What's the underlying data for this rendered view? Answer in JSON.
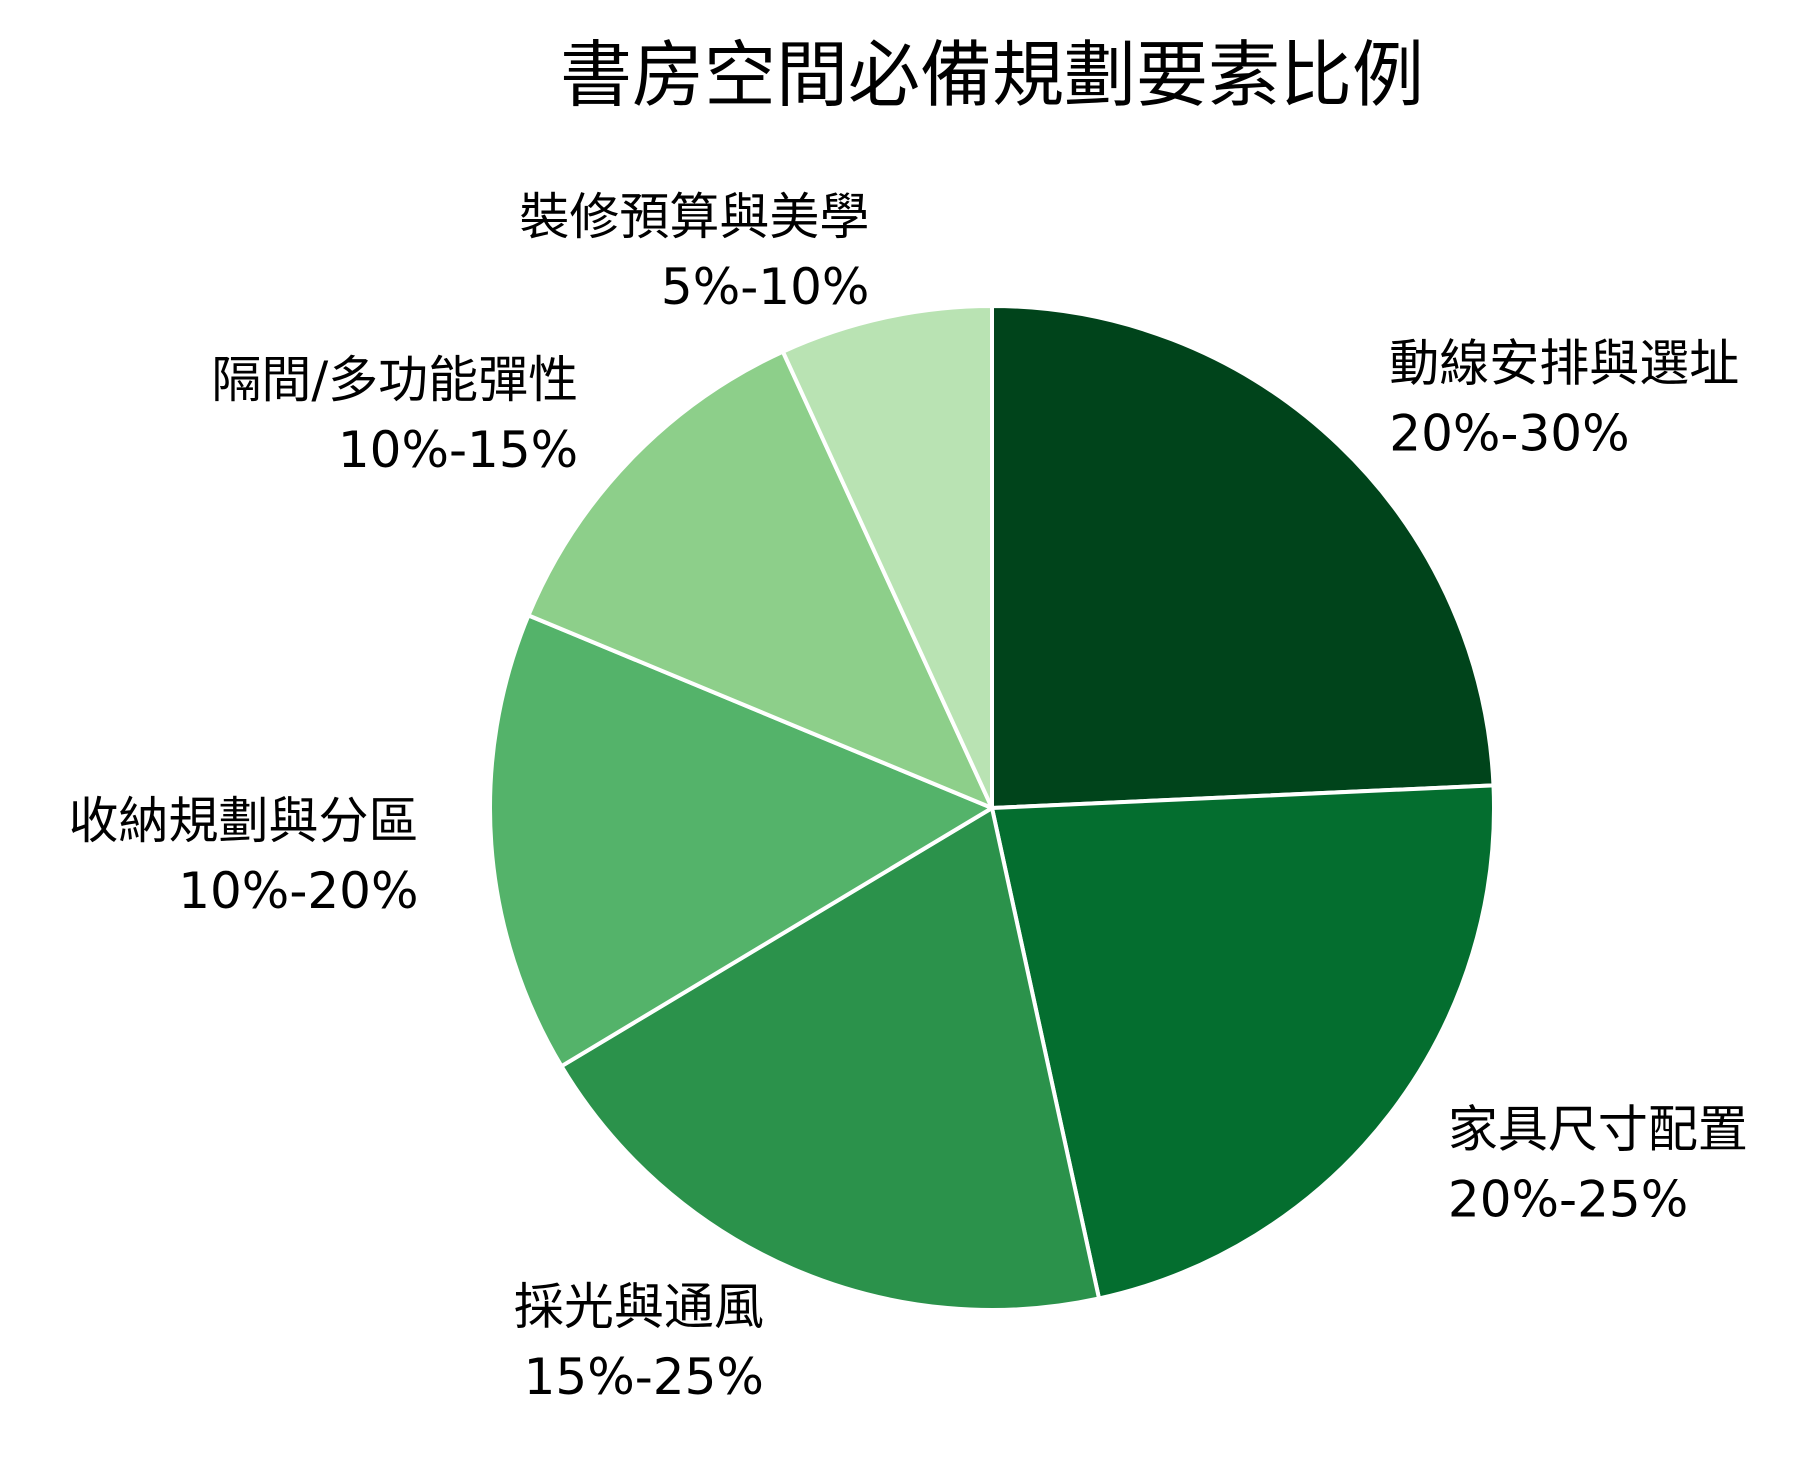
{
  "chart_data": {
    "type": "pie",
    "title": "書房空間必備規劃要素比例",
    "start_angle_deg": 90,
    "direction": "clockwise",
    "slice_border_color": "#ffffff",
    "slices": [
      {
        "label": "動線安排與選址",
        "range_text": "20%-30%",
        "value": 24.5,
        "color": "#00441b"
      },
      {
        "label": "家具尺寸配置",
        "range_text": "20%-25%",
        "value": 22.5,
        "color": "#046e2f"
      },
      {
        "label": "採光與通風",
        "range_text": "15%-25%",
        "value": 20.0,
        "color": "#2b924b"
      },
      {
        "label": "收納規劃與分區",
        "range_text": "10%-20%",
        "value": 15.0,
        "color": "#54b36a"
      },
      {
        "label": "隔間/多功能彈性",
        "range_text": "10%-15%",
        "value": 12.0,
        "color": "#8dcf8a"
      },
      {
        "label": "裝修預算與美學",
        "range_text": "5%-10%",
        "value": 6.9,
        "color": "#b9e3b3"
      }
    ]
  }
}
